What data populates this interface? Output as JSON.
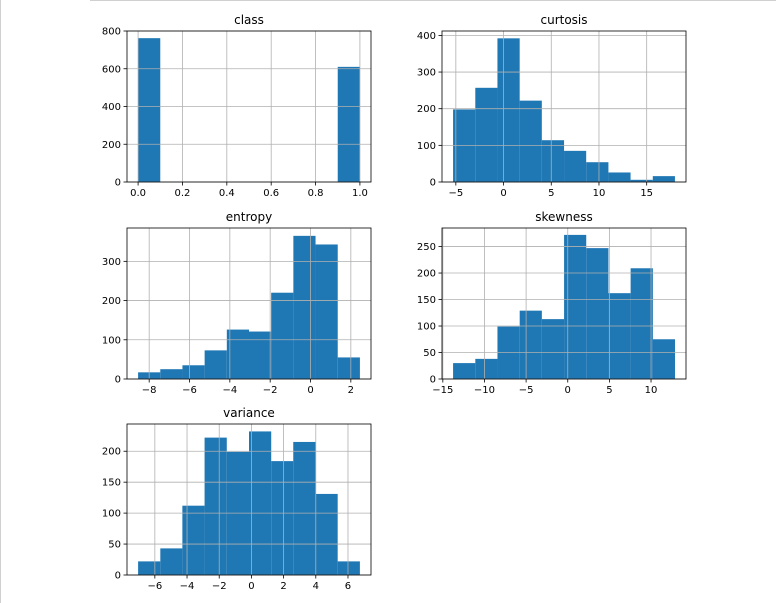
{
  "chart_data": [
    {
      "type": "bar",
      "title": "class",
      "bins": [
        [
          0,
          0.1
        ],
        [
          0.1,
          0.2
        ],
        [
          0.2,
          0.3
        ],
        [
          0.3,
          0.4
        ],
        [
          0.4,
          0.5
        ],
        [
          0.5,
          0.6
        ],
        [
          0.6,
          0.7
        ],
        [
          0.7,
          0.8
        ],
        [
          0.8,
          0.9
        ],
        [
          0.9,
          1.0
        ]
      ],
      "values": [
        762,
        0,
        0,
        0,
        0,
        0,
        0,
        0,
        0,
        610
      ],
      "xlim": [
        -0.05,
        1.05
      ],
      "ylim": [
        0,
        800
      ],
      "xticks": [
        0,
        0.2,
        0.4,
        0.6,
        0.8,
        1.0
      ],
      "xtick_labels": [
        "0.0",
        "0.2",
        "0.4",
        "0.6",
        "0.8",
        "1.0"
      ],
      "yticks": [
        0,
        200,
        400,
        600,
        800
      ],
      "ytick_labels": [
        "0",
        "200",
        "400",
        "600",
        "800"
      ],
      "grid": true
    },
    {
      "type": "bar",
      "title": "curtosis",
      "bins": [
        [
          -5.29,
          -2.96
        ],
        [
          -2.96,
          -0.64
        ],
        [
          -0.64,
          1.69
        ],
        [
          1.69,
          4.01
        ],
        [
          4.01,
          6.34
        ],
        [
          6.34,
          8.66
        ],
        [
          8.66,
          10.99
        ],
        [
          10.99,
          13.31
        ],
        [
          13.31,
          15.64
        ],
        [
          15.64,
          17.96
        ]
      ],
      "values": [
        198,
        257,
        392,
        222,
        114,
        85,
        54,
        26,
        6,
        16
      ],
      "xlim": [
        -6.45,
        19.12
      ],
      "ylim": [
        0,
        412
      ],
      "xticks": [
        -5,
        0,
        5,
        10,
        15
      ],
      "xtick_labels": [
        "−5",
        "0",
        "5",
        "10",
        "15"
      ],
      "yticks": [
        0,
        100,
        200,
        300,
        400
      ],
      "ytick_labels": [
        "0",
        "100",
        "200",
        "300",
        "400"
      ],
      "grid": true
    },
    {
      "type": "bar",
      "title": "entropy",
      "bins": [
        [
          -8.55,
          -7.45
        ],
        [
          -7.45,
          -6.35
        ],
        [
          -6.35,
          -5.25
        ],
        [
          -5.25,
          -4.15
        ],
        [
          -4.15,
          -3.05
        ],
        [
          -3.05,
          -1.95
        ],
        [
          -1.95,
          -0.85
        ],
        [
          -0.85,
          0.25
        ],
        [
          0.25,
          1.35
        ],
        [
          1.35,
          2.45
        ]
      ],
      "values": [
        17,
        25,
        35,
        73,
        126,
        121,
        220,
        365,
        343,
        55
      ],
      "xlim": [
        -9.1,
        3.0
      ],
      "ylim": [
        0,
        385
      ],
      "xticks": [
        -8,
        -6,
        -4,
        -2,
        0,
        2
      ],
      "xtick_labels": [
        "−8",
        "−6",
        "−4",
        "−2",
        "0",
        "2"
      ],
      "yticks": [
        0,
        100,
        200,
        300
      ],
      "ytick_labels": [
        "0",
        "100",
        "200",
        "300"
      ],
      "grid": true
    },
    {
      "type": "bar",
      "title": "skewness",
      "bins": [
        [
          -13.77,
          -11.1
        ],
        [
          -11.1,
          -8.44
        ],
        [
          -8.44,
          -5.77
        ],
        [
          -5.77,
          -3.11
        ],
        [
          -3.11,
          -0.44
        ],
        [
          -0.44,
          2.22
        ],
        [
          2.22,
          4.89
        ],
        [
          4.89,
          7.55
        ],
        [
          7.55,
          10.22
        ],
        [
          10.22,
          12.88
        ]
      ],
      "values": [
        30,
        38,
        99,
        129,
        113,
        272,
        247,
        162,
        209,
        75
      ],
      "xlim": [
        -15.1,
        14.2
      ],
      "ylim": [
        0,
        285
      ],
      "xticks": [
        -15,
        -10,
        -5,
        0,
        5,
        10
      ],
      "xtick_labels": [
        "−15",
        "−10",
        "−5",
        "0",
        "5",
        "10"
      ],
      "yticks": [
        0,
        50,
        100,
        150,
        200,
        250
      ],
      "ytick_labels": [
        "0",
        "50",
        "100",
        "150",
        "200",
        "250"
      ],
      "grid": true
    },
    {
      "type": "bar",
      "title": "variance",
      "bins": [
        [
          -7.04,
          -5.66
        ],
        [
          -5.66,
          -4.29
        ],
        [
          -4.29,
          -2.91
        ],
        [
          -2.91,
          -1.53
        ],
        [
          -1.53,
          -0.15
        ],
        [
          -0.15,
          1.23
        ],
        [
          1.23,
          2.6
        ],
        [
          2.6,
          3.98
        ],
        [
          3.98,
          5.36
        ],
        [
          5.36,
          6.74
        ]
      ],
      "values": [
        22,
        43,
        112,
        222,
        199,
        232,
        184,
        215,
        131,
        22
      ],
      "xlim": [
        -7.73,
        7.43
      ],
      "ylim": [
        0,
        244
      ],
      "xticks": [
        -6,
        -4,
        -2,
        0,
        2,
        4,
        6
      ],
      "xtick_labels": [
        "−6",
        "−4",
        "−2",
        "0",
        "2",
        "4",
        "6"
      ],
      "yticks": [
        0,
        50,
        100,
        150,
        200
      ],
      "ytick_labels": [
        "0",
        "50",
        "100",
        "150",
        "200"
      ],
      "grid": true
    }
  ]
}
